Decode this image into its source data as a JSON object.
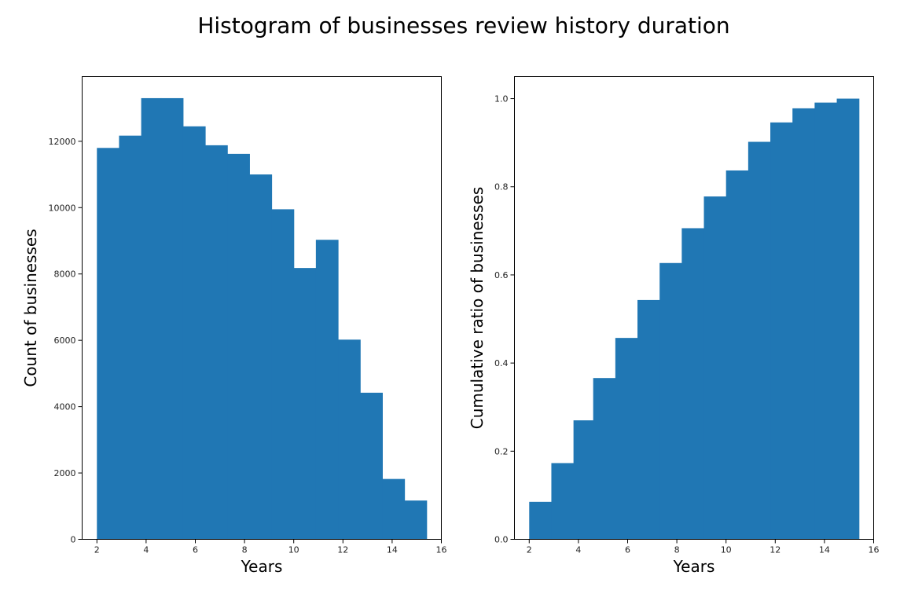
{
  "figure": {
    "title": "Histogram of businesses review history duration"
  },
  "chart_data": [
    {
      "type": "bar",
      "histogram": true,
      "bin_edges": [
        2.0,
        2.9,
        3.8,
        4.6,
        5.5,
        6.4,
        7.3,
        8.2,
        9.1,
        10.0,
        10.9,
        11.8,
        12.7,
        13.6,
        14.5,
        15.4
      ],
      "values": [
        11800,
        12170,
        13300,
        13300,
        12450,
        11880,
        11620,
        11000,
        9950,
        8180,
        9030,
        6020,
        4420,
        1820,
        1170
      ],
      "color": "#2077b4",
      "title": "",
      "xlabel": "Years",
      "ylabel": "Count of businesses",
      "xlim": [
        1.4,
        16.0
      ],
      "ylim": [
        0,
        13950
      ],
      "xticks": [
        2,
        4,
        6,
        8,
        10,
        12,
        14,
        16
      ],
      "yticks": [
        0,
        2000,
        4000,
        6000,
        8000,
        10000,
        12000
      ],
      "grid": false,
      "legend": "none"
    },
    {
      "type": "bar",
      "histogram": true,
      "cumulative": true,
      "bin_edges": [
        2.0,
        2.9,
        3.8,
        4.6,
        5.5,
        6.4,
        7.3,
        8.2,
        9.1,
        10.0,
        10.9,
        11.8,
        12.7,
        13.6,
        14.5,
        15.4
      ],
      "values": [
        0.085,
        0.173,
        0.27,
        0.366,
        0.457,
        0.543,
        0.627,
        0.706,
        0.778,
        0.837,
        0.902,
        0.946,
        0.978,
        0.991,
        1.0
      ],
      "color": "#2077b4",
      "title": "",
      "xlabel": "Years",
      "ylabel": "Cumulative ratio of businesses",
      "xlim": [
        1.4,
        16.0
      ],
      "ylim": [
        0,
        1.05
      ],
      "xticks": [
        2,
        4,
        6,
        8,
        10,
        12,
        14,
        16
      ],
      "yticks": [
        0.0,
        0.2,
        0.4,
        0.6,
        0.8,
        1.0
      ],
      "ytick_labels": [
        "0.0",
        "0.2",
        "0.4",
        "0.6",
        "0.8",
        "1.0"
      ],
      "grid": false,
      "legend": "none"
    }
  ]
}
